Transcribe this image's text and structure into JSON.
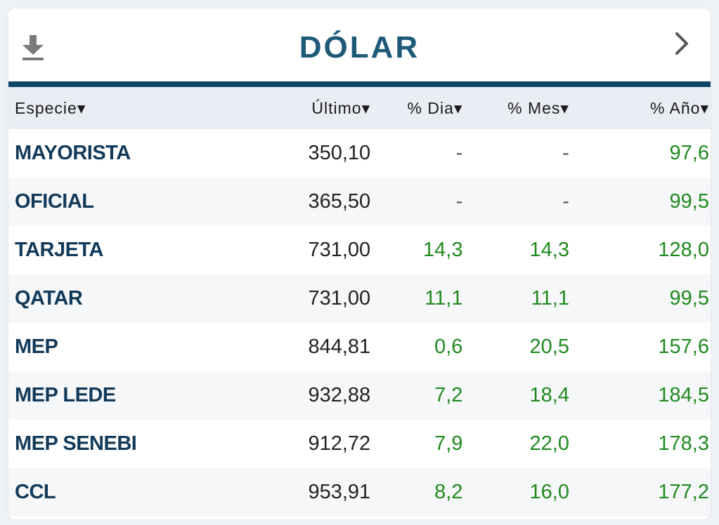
{
  "widget": {
    "title": "DÓLAR",
    "download_icon": "download-icon",
    "next_icon": "chevron-right-icon",
    "title_color": "#1e5a78",
    "rule_color": "#0d4666",
    "positive_color": "#1f8a1f"
  },
  "table": {
    "headers": [
      "Especie▾",
      "Último▾",
      "% Dia▾",
      "% Mes▾",
      "% Año▾"
    ],
    "rows": [
      {
        "name": "MAYORISTA",
        "last": "350,10",
        "day": "-",
        "month": "-",
        "year": "97,6"
      },
      {
        "name": "OFICIAL",
        "last": "365,50",
        "day": "-",
        "month": "-",
        "year": "99,5"
      },
      {
        "name": "TARJETA",
        "last": "731,00",
        "day": "14,3",
        "month": "14,3",
        "year": "128,0"
      },
      {
        "name": "QATAR",
        "last": "731,00",
        "day": "11,1",
        "month": "11,1",
        "year": "99,5"
      },
      {
        "name": "MEP",
        "last": "844,81",
        "day": "0,6",
        "month": "20,5",
        "year": "157,6"
      },
      {
        "name": "MEP LEDE",
        "last": "932,88",
        "day": "7,2",
        "month": "18,4",
        "year": "184,5"
      },
      {
        "name": "MEP SENEBI",
        "last": "912,72",
        "day": "7,9",
        "month": "22,0",
        "year": "178,3"
      },
      {
        "name": "CCL",
        "last": "953,91",
        "day": "8,2",
        "month": "16,0",
        "year": "177,2"
      }
    ]
  }
}
